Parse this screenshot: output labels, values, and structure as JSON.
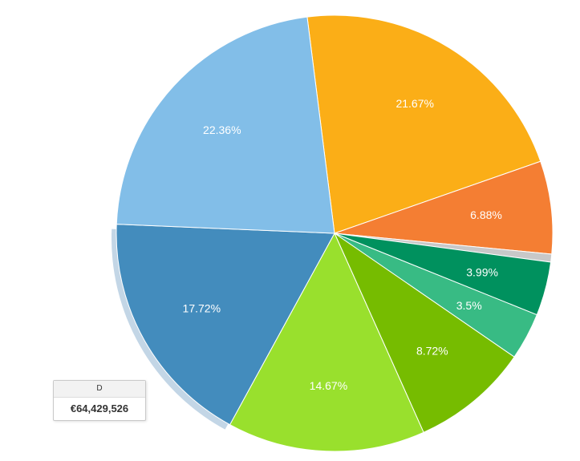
{
  "chart_data": {
    "type": "pie",
    "slices": [
      {
        "label": "21.67%",
        "value": 21.67,
        "color": "#fbae17"
      },
      {
        "label": "6.88%",
        "value": 6.88,
        "color": "#f47e33"
      },
      {
        "label": "",
        "value": 0.59,
        "color": "#c8c8c8"
      },
      {
        "label": "3.99%",
        "value": 3.99,
        "color": "#00915e"
      },
      {
        "label": "3.5%",
        "value": 3.5,
        "color": "#38bb84"
      },
      {
        "label": "8.72%",
        "value": 8.72,
        "color": "#76bc00"
      },
      {
        "label": "14.67%",
        "value": 14.67,
        "color": "#99e02d"
      },
      {
        "label": "17.72%",
        "value": 17.72,
        "color": "#438cbd",
        "selected": true
      },
      {
        "label": "22.36%",
        "value": 22.36,
        "color": "#82bee8"
      }
    ],
    "label_color": "#ffffff"
  },
  "tooltip": {
    "title": "D",
    "value": "€64,429,526"
  }
}
